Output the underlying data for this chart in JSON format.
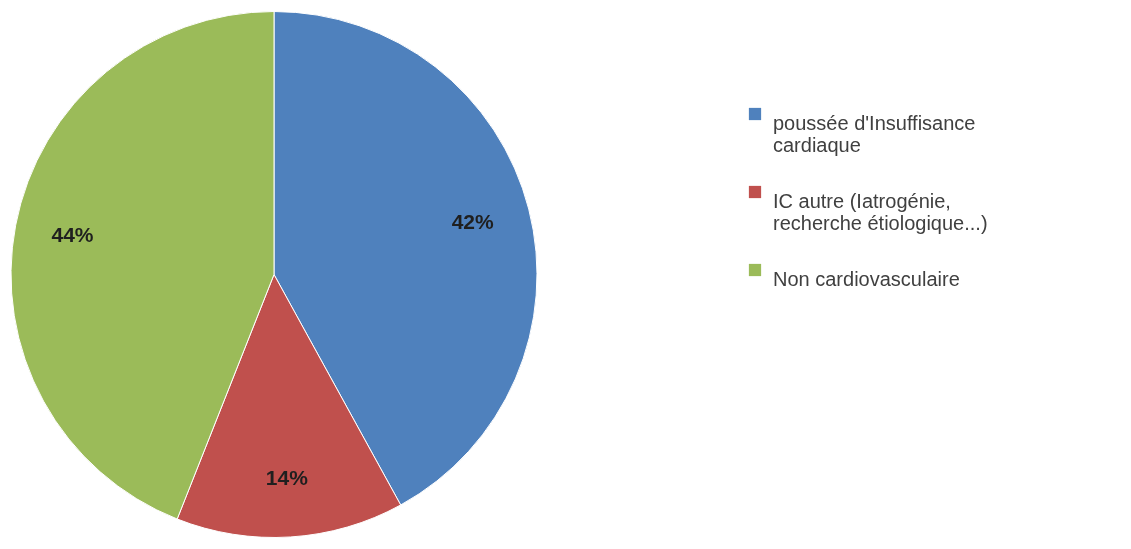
{
  "chart_data": {
    "type": "pie",
    "categories": [
      "poussée d'Insuffisance cardiaque",
      "IC autre (Iatrogénie, recherche étiologique...)",
      "Non cardiovasculaire"
    ],
    "values": [
      42,
      14,
      44
    ],
    "colors": [
      "#4f81bd",
      "#c0504d",
      "#9bbb59"
    ],
    "value_labels": [
      "42%",
      "14%",
      "44%"
    ],
    "legend": "right"
  }
}
